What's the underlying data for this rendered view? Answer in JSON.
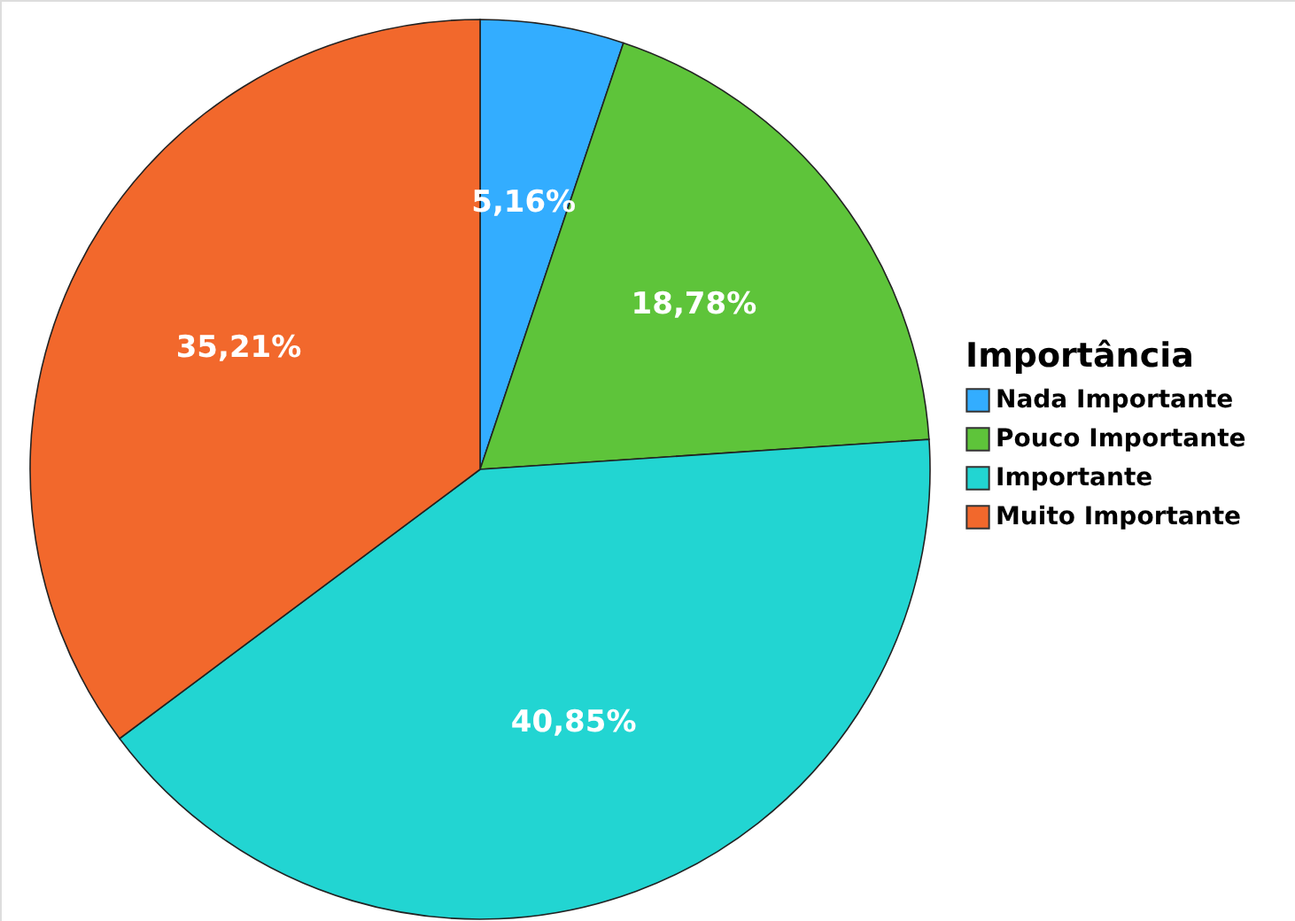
{
  "chart_data": {
    "type": "pie",
    "legend_title": "Importância",
    "categories": [
      "Nada Importante",
      "Pouco Importante",
      "Importante",
      "Muito Importante"
    ],
    "values": [
      5.16,
      18.78,
      40.85,
      35.21
    ],
    "colors": [
      "#33adff",
      "#5ec43a",
      "#22d5d2",
      "#f2682c"
    ],
    "value_labels": [
      "5,16%",
      "18,78%",
      "40,85%",
      "35,21%"
    ],
    "legend": "right"
  }
}
